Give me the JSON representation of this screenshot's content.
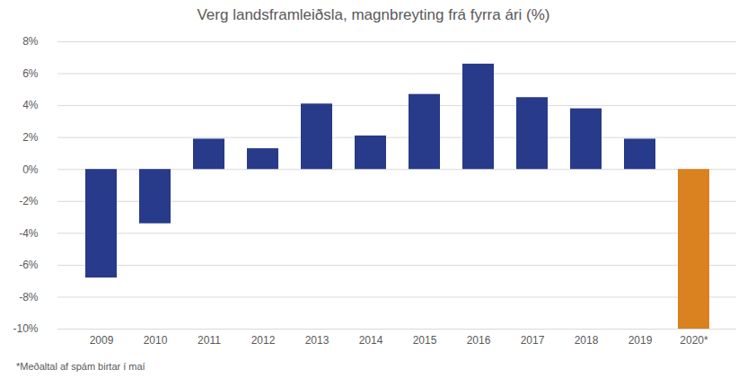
{
  "chart_data": {
    "type": "bar",
    "title": "Verg landsframleiðsla, magnbreyting frá fyrra ári (%)",
    "caption": "*Meðaltal af spám birtar í maí",
    "categories": [
      "2009",
      "2010",
      "2011",
      "2012",
      "2013",
      "2014",
      "2015",
      "2016",
      "2017",
      "2018",
      "2019",
      "2020*"
    ],
    "values": [
      -6.8,
      -3.4,
      1.9,
      1.3,
      4.1,
      2.1,
      4.7,
      6.6,
      4.5,
      3.8,
      1.9,
      -10.0
    ],
    "colors": [
      "#283a8a",
      "#283a8a",
      "#283a8a",
      "#283a8a",
      "#283a8a",
      "#283a8a",
      "#283a8a",
      "#283a8a",
      "#283a8a",
      "#283a8a",
      "#283a8a",
      "#d9821f"
    ],
    "ylim": [
      -10,
      8
    ],
    "yticks": [
      {
        "value": -10,
        "label": "-10%"
      },
      {
        "value": -8,
        "label": "-8%"
      },
      {
        "value": -6,
        "label": "-6%"
      },
      {
        "value": -4,
        "label": "-4%"
      },
      {
        "value": -2,
        "label": "-2%"
      },
      {
        "value": 0,
        "label": "0%"
      },
      {
        "value": 2,
        "label": "2%"
      },
      {
        "value": 4,
        "label": "4%"
      },
      {
        "value": 6,
        "label": "6%"
      },
      {
        "value": 8,
        "label": "8%"
      }
    ],
    "grid": true
  }
}
